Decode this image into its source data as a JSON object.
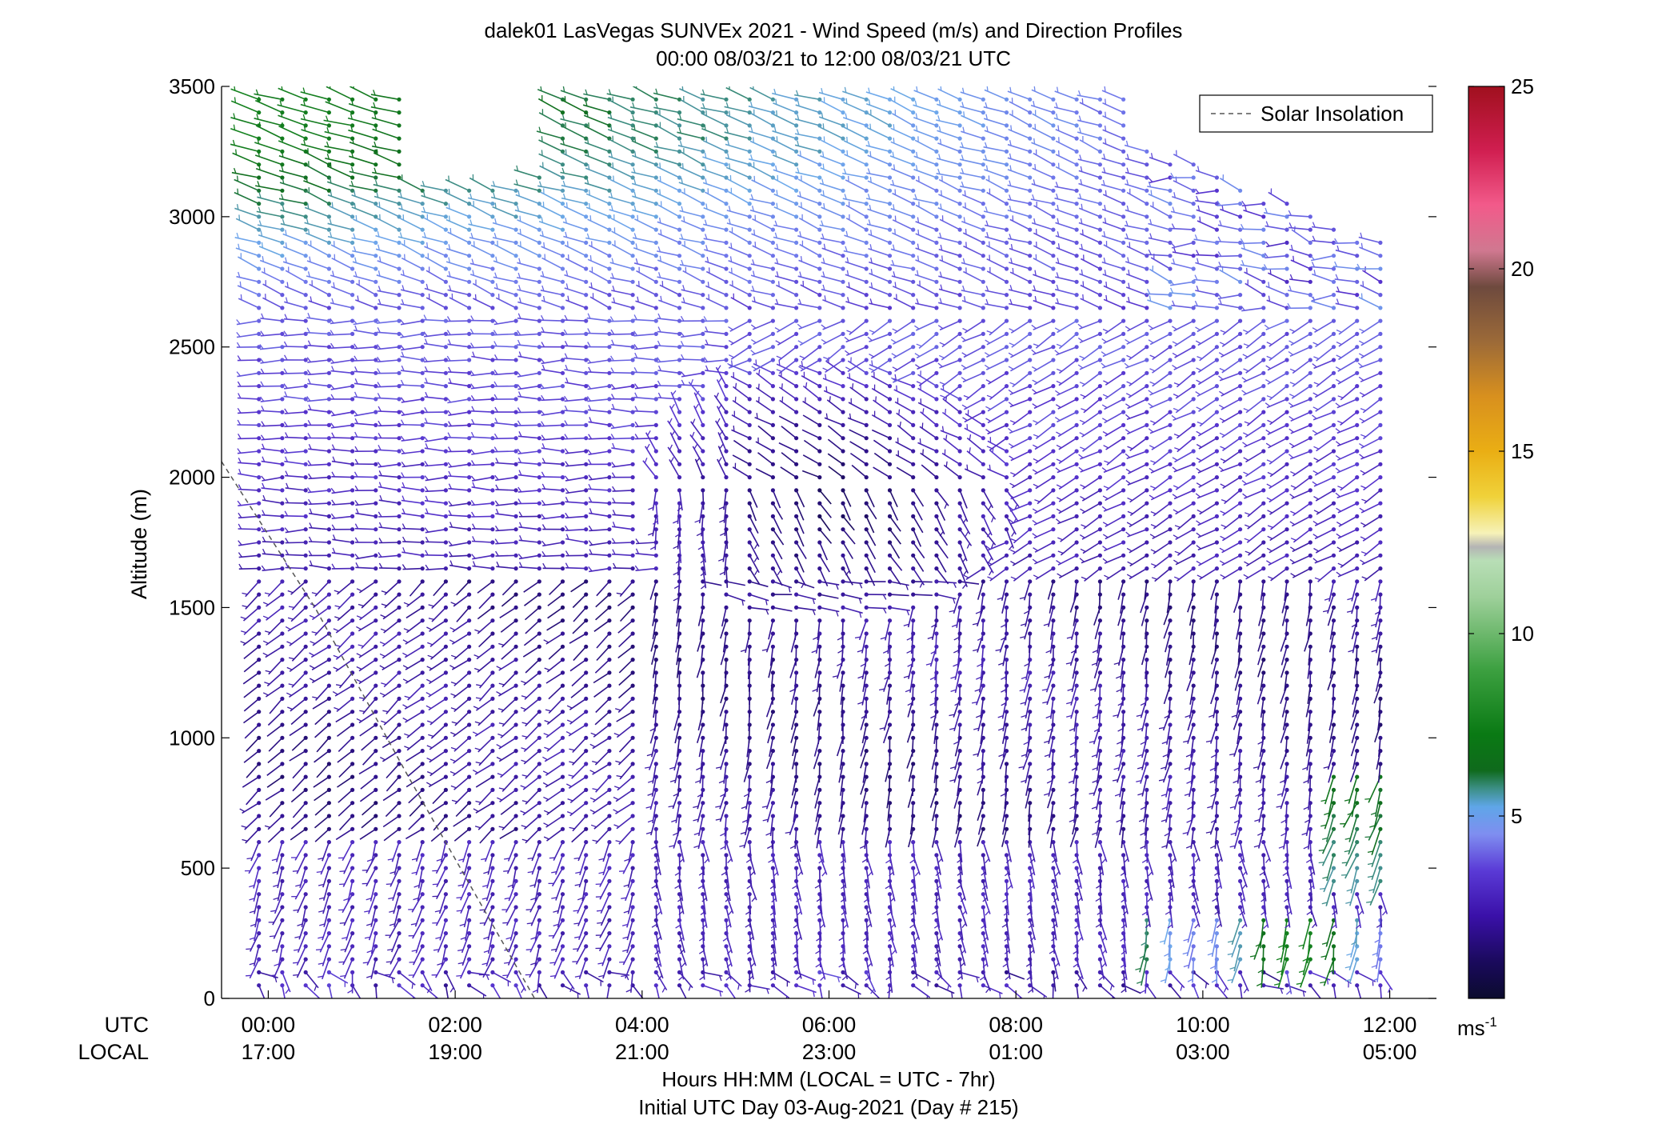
{
  "chart_data": {
    "type": "wind-barb profile",
    "title": "dalek01 LasVegas SUNVEx 2021 - Wind Speed (m/s) and Direction Profiles",
    "subtitle": "00:00 08/03/21 to 12:00 08/03/21  UTC",
    "ylabel": "Altitude (m)",
    "xlabel": "Hours HH:MM  (LOCAL = UTC - 7hr)",
    "xlabel2": "Initial UTC Day 03-Aug-2021 (Day # 215)",
    "xlim_hours_utc": [
      -0.5,
      12.5
    ],
    "ylim": [
      0,
      3500
    ],
    "y_ticks": [
      0,
      500,
      1000,
      1500,
      2000,
      2500,
      3000,
      3500
    ],
    "y_tick_labels": [
      "0",
      "500",
      "1000",
      "1500",
      "2000",
      "2500",
      "3000",
      "3500"
    ],
    "x_ticks_hours": [
      0,
      2,
      4,
      6,
      8,
      10,
      12
    ],
    "x_row_label_utc": "UTC",
    "x_row_label_local": "LOCAL",
    "x_tick_labels_utc": [
      "00:00",
      "02:00",
      "04:00",
      "06:00",
      "08:00",
      "10:00",
      "12:00"
    ],
    "x_tick_labels_local": [
      "17:00",
      "19:00",
      "21:00",
      "23:00",
      "01:00",
      "03:00",
      "05:00"
    ],
    "colorbar": {
      "range": [
        0,
        25
      ],
      "ticks": [
        5,
        10,
        15,
        20,
        25
      ],
      "tick_labels": [
        "5",
        "10",
        "15",
        "20",
        "25"
      ],
      "unit_label": "ms",
      "unit_exponent": "-1"
    },
    "legend": {
      "placement": "top-right",
      "entries": [
        "Solar Insolation"
      ]
    },
    "solar_insolation_line": {
      "hours": [
        -0.5,
        0.5,
        1.5,
        2.5,
        2.85
      ],
      "altitude_m": [
        2060,
        1500,
        850,
        220,
        0
      ]
    },
    "profile_spacing_hours": 0.25,
    "altitude_spacing_m": 50,
    "wind_regimes_description_values": {
      "upper_early_speed_ms": [
        5,
        8
      ],
      "low_level_jet_speed_ms": [
        5,
        9
      ],
      "typical_speed_ms": [
        1,
        4
      ]
    }
  }
}
